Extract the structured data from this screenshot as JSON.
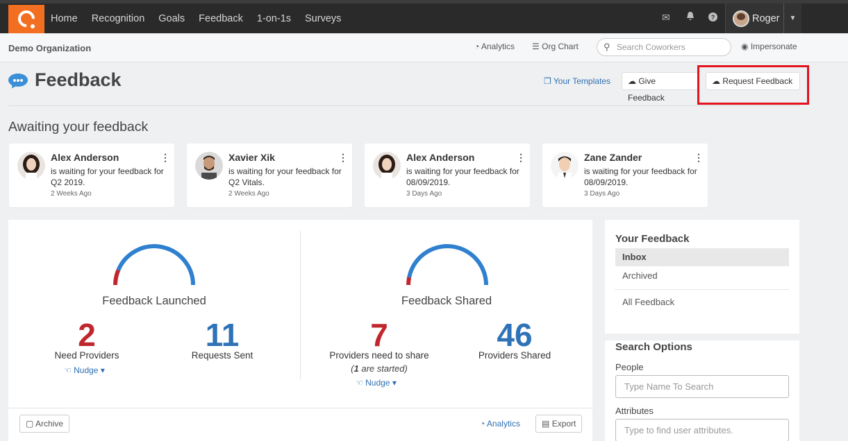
{
  "nav": {
    "links": [
      "Home",
      "Recognition",
      "Goals",
      "Feedback",
      "1-on-1s",
      "Surveys"
    ],
    "user_name": "Roger"
  },
  "subbar": {
    "org_name": "Demo Organization",
    "analytics_label": "Analytics",
    "org_chart_label": "Org Chart",
    "search_placeholder": "Search Coworkers",
    "impersonate_label": "Impersonate"
  },
  "header": {
    "title": "Feedback",
    "templates_label": "Your Templates",
    "give_label": "Give Feedback",
    "request_label": "Request Feedback"
  },
  "awaiting": {
    "title": "Awaiting your feedback",
    "cards": [
      {
        "name": "Alex Anderson",
        "msg": "is waiting for your feedback for Q2 2019.",
        "ago": "2 Weeks Ago"
      },
      {
        "name": "Xavier Xik",
        "msg": "is waiting for your feedback for Q2 Vitals.",
        "ago": "2 Weeks Ago"
      },
      {
        "name": "Alex Anderson",
        "msg": "is waiting for your feedback for 08/09/2019.",
        "ago": "3 Days Ago"
      },
      {
        "name": "Zane Zander",
        "msg": "is waiting for your feedback for 08/09/2019.",
        "ago": "3 Days Ago"
      }
    ]
  },
  "stats": {
    "launched": {
      "title": "Feedback Launched",
      "need_value": "2",
      "need_label": "Need Providers",
      "nudge_label": "Nudge",
      "sent_value": "11",
      "sent_label": "Requests Sent"
    },
    "shared": {
      "title": "Feedback Shared",
      "need_value": "7",
      "need_label": "Providers need to share",
      "started_num": "1",
      "started_text": " are started)",
      "nudge_label": "Nudge",
      "shared_value": "46",
      "shared_label": "Providers Shared"
    },
    "archive_label": "Archive",
    "analytics_label": "Analytics",
    "export_label": "Export"
  },
  "sidebar": {
    "your_feedback_title": "Your Feedback",
    "inbox": "Inbox",
    "archived": "Archived",
    "all_feedback": "All Feedback",
    "search_options_title": "Search Options",
    "people_label": "People",
    "people_placeholder": "Type Name To Search",
    "attributes_label": "Attributes",
    "attributes_placeholder": "Type to find user attributes."
  }
}
